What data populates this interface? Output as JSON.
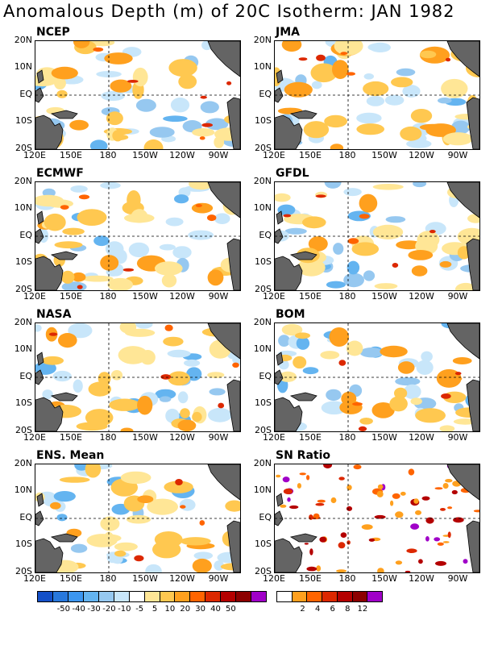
{
  "title": "Anomalous Depth (m) of 20C Isotherm: JAN 1982",
  "lat_labels": [
    "20N",
    "10N",
    "EQ",
    "10S",
    "20S"
  ],
  "lon_labels": [
    "120E",
    "150E",
    "180",
    "150W",
    "120W",
    "90W"
  ],
  "panels": [
    {
      "name": "NCEP"
    },
    {
      "name": "JMA"
    },
    {
      "name": "ECMWF"
    },
    {
      "name": "GFDL"
    },
    {
      "name": "NASA"
    },
    {
      "name": "BOM"
    },
    {
      "name": "ENS. Mean"
    },
    {
      "name": "SN Ratio"
    }
  ],
  "colorbar_left": {
    "colors": [
      "#1450c8",
      "#2878dc",
      "#3c96f0",
      "#64b4f0",
      "#96c8f0",
      "#c8e6fa",
      "#ffffff",
      "#ffe696",
      "#ffc850",
      "#ffa01e",
      "#ff6400",
      "#dc2800",
      "#b40000",
      "#8c0000",
      "#a000c8"
    ],
    "labels": [
      "-50",
      "-40",
      "-30",
      "-20",
      "-10",
      "-5",
      "5",
      "10",
      "20",
      "30",
      "40",
      "50"
    ]
  },
  "colorbar_right": {
    "colors": [
      "#ffffff",
      "#ffa01e",
      "#ff6400",
      "#dc2800",
      "#b40000",
      "#8c0000",
      "#a000c8"
    ],
    "labels": [
      "2",
      "4",
      "6",
      "8",
      "12"
    ]
  },
  "land_color": "#646464"
}
